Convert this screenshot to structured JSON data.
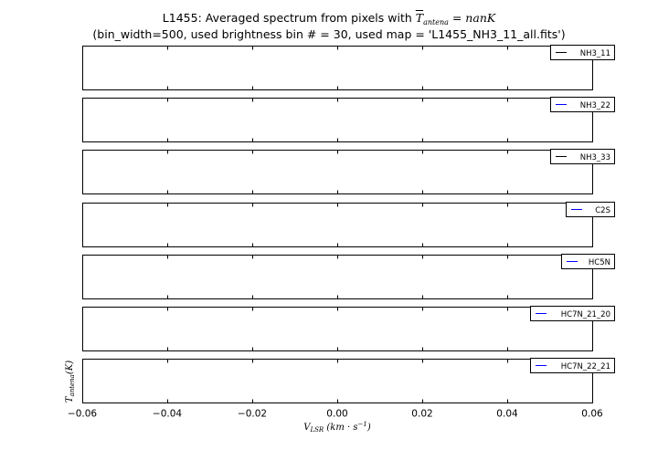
{
  "title": {
    "line1_prefix": "L1455: Averaged spectrum from pixels with ",
    "line1_var": "T",
    "line1_sub": "antena",
    "line1_eq": " = nanK",
    "line2": "(bin_width=500, used brightness bin # = 30, used map = 'L1455_NH3_11_all.fits')"
  },
  "chart_data": {
    "type": "line",
    "xlabel": "V",
    "xlabel_sub": "LSR",
    "xlabel_unit": " (km · s",
    "xlabel_unit_exp": "−1",
    "xlabel_close": ")",
    "ylabel": "T",
    "ylabel_sub": "antena",
    "ylabel_unit": "(K)",
    "xlim": [
      -0.06,
      0.06
    ],
    "x_ticks": [
      -0.06,
      -0.04,
      -0.02,
      0.0,
      0.02,
      0.04,
      0.06
    ],
    "x_tick_labels": [
      "−0.06",
      "−0.04",
      "−0.02",
      "0.00",
      "0.02",
      "0.04",
      "0.06"
    ],
    "grid": false,
    "legend_placement": "top-right",
    "panels": [
      {
        "name": "NH3_11",
        "color": "#000000",
        "x": [],
        "y": []
      },
      {
        "name": "NH3_22",
        "color": "#0000ff",
        "x": [],
        "y": []
      },
      {
        "name": "NH3_33",
        "color": "#000000",
        "x": [],
        "y": []
      },
      {
        "name": "C2S",
        "color": "#0000ff",
        "x": [],
        "y": []
      },
      {
        "name": "HC5N",
        "color": "#0000ff",
        "x": [],
        "y": []
      },
      {
        "name": "HC7N_21_20",
        "color": "#0000ff",
        "x": [],
        "y": []
      },
      {
        "name": "HC7N_22_21",
        "color": "#0000ff",
        "x": [],
        "y": []
      }
    ]
  }
}
